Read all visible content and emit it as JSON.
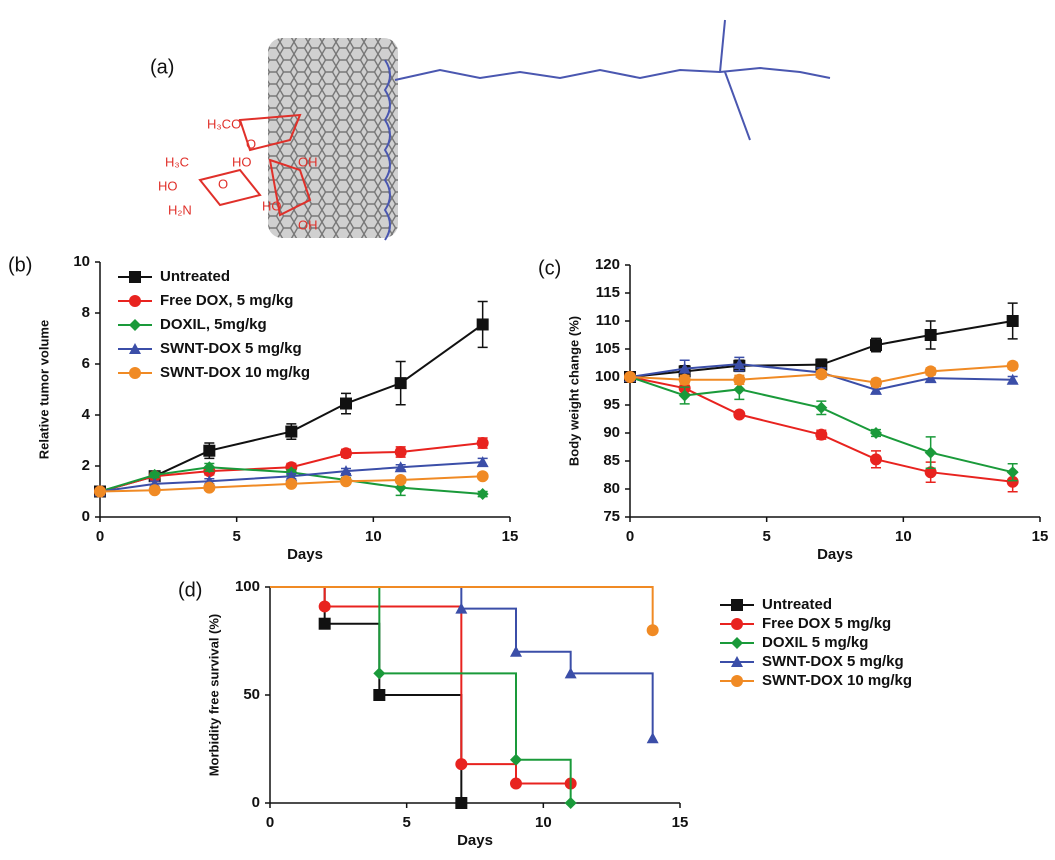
{
  "figure_a": {
    "panel": "(a)",
    "texts": [
      "H₃CO",
      "O",
      "HO",
      "OH",
      "H₃C",
      "HO",
      "O",
      "H₂N",
      "HO",
      "OH"
    ]
  },
  "chart_data": [
    {
      "type": "line",
      "panel": "(b)",
      "xlabel": "Days",
      "ylabel": "Relative tumor volume",
      "xlim": [
        0,
        15
      ],
      "xticks": [
        0,
        5,
        10,
        15
      ],
      "ylim": [
        0,
        10
      ],
      "yticks": [
        0,
        2,
        4,
        6,
        8,
        10
      ],
      "legend": "upper left",
      "x": [
        0,
        2,
        4,
        7,
        9,
        11,
        14
      ],
      "series": [
        {
          "name": "Untreated",
          "color": "#111111",
          "marker": "square",
          "values": [
            1,
            1.6,
            2.6,
            3.35,
            4.45,
            5.25,
            7.55
          ],
          "errors": [
            0,
            0.1,
            0.3,
            0.3,
            0.4,
            0.85,
            0.9
          ]
        },
        {
          "name": "Free DOX, 5 mg/kg",
          "color": "#e8231f",
          "marker": "circle",
          "values": [
            1,
            1.6,
            1.8,
            1.95,
            2.5,
            2.55,
            2.9
          ],
          "errors": [
            0,
            0.1,
            0.15,
            0.15,
            0.15,
            0.2,
            0.2
          ]
        },
        {
          "name": "DOXIL, 5mg/kg",
          "color": "#1a9a3a",
          "marker": "diamond",
          "values": [
            1,
            1.65,
            1.95,
            1.75,
            1.45,
            1.15,
            0.9
          ],
          "errors": [
            0,
            0.1,
            0.15,
            0.1,
            0.1,
            0.3,
            0.1
          ]
        },
        {
          "name": "SWNT-DOX 5 mg/kg",
          "color": "#3b4ea8",
          "marker": "triangle",
          "values": [
            1,
            1.3,
            1.4,
            1.6,
            1.8,
            1.95,
            2.15
          ],
          "errors": [
            0,
            0.1,
            0.1,
            0.1,
            0.1,
            0.1,
            0.15
          ]
        },
        {
          "name": "SWNT-DOX 10 mg/kg",
          "color": "#f08a24",
          "marker": "circle",
          "values": [
            1,
            1.05,
            1.15,
            1.3,
            1.4,
            1.45,
            1.6
          ],
          "errors": [
            0,
            0.1,
            0.1,
            0.1,
            0.1,
            0.1,
            0.1
          ]
        }
      ]
    },
    {
      "type": "line",
      "panel": "(c)",
      "xlabel": "Days",
      "ylabel": "Body weight change (%)",
      "xlim": [
        0,
        15
      ],
      "xticks": [
        0,
        5,
        10,
        15
      ],
      "ylim": [
        75,
        120
      ],
      "yticks": [
        75,
        80,
        85,
        90,
        95,
        100,
        105,
        110,
        115,
        120
      ],
      "x": [
        0,
        2,
        4,
        7,
        9,
        11,
        14
      ],
      "series": [
        {
          "color": "#111111",
          "marker": "square",
          "values": [
            100,
            101,
            102,
            102.2,
            105.7,
            107.5,
            110
          ],
          "errors": [
            0,
            1,
            1,
            1,
            1.2,
            2.5,
            3.2
          ]
        },
        {
          "color": "#e8231f",
          "marker": "circle",
          "values": [
            100,
            98,
            93.3,
            89.7,
            85.3,
            83,
            81.3
          ],
          "errors": [
            0,
            1,
            0.5,
            0.8,
            1.5,
            1.8,
            1.8
          ]
        },
        {
          "color": "#1a9a3a",
          "marker": "diamond",
          "values": [
            100,
            96.7,
            97.8,
            94.5,
            90,
            86.5,
            83
          ],
          "errors": [
            0,
            1.5,
            1.8,
            1.2,
            0.6,
            2.8,
            1.5
          ]
        },
        {
          "color": "#3b4ea8",
          "marker": "triangle",
          "values": [
            100,
            101.5,
            102.3,
            100.8,
            97.7,
            99.8,
            99.5
          ],
          "errors": [
            0,
            1.5,
            1.2,
            0.8,
            0.6,
            0.6,
            0.6
          ]
        },
        {
          "color": "#f08a24",
          "marker": "circle",
          "values": [
            100,
            99.5,
            99.5,
            100.5,
            99,
            101,
            102
          ],
          "errors": [
            0,
            0.8,
            0.8,
            0.6,
            0.6,
            0.6,
            0.6
          ]
        }
      ]
    },
    {
      "type": "step",
      "panel": "(d)",
      "xlabel": "Days",
      "ylabel": "Morbidity free survival (%)",
      "xlim": [
        0,
        15
      ],
      "xticks": [
        0,
        5,
        10,
        15
      ],
      "ylim": [
        0,
        100
      ],
      "yticks": [
        0,
        50,
        100
      ],
      "legend": "right",
      "series": [
        {
          "name": "Untreated",
          "color": "#111111",
          "marker": "square",
          "x": [
            0,
            2,
            4,
            7
          ],
          "values": [
            100,
            83,
            50,
            0
          ]
        },
        {
          "name": "Free DOX 5 mg/kg",
          "color": "#e8231f",
          "marker": "circle",
          "x": [
            0,
            2,
            7,
            9,
            11
          ],
          "values": [
            100,
            91,
            18,
            9,
            9
          ]
        },
        {
          "name": "DOXIL 5 mg/kg",
          "color": "#1a9a3a",
          "marker": "diamond",
          "x": [
            0,
            4,
            9,
            11
          ],
          "values": [
            100,
            60,
            20,
            0
          ]
        },
        {
          "name": "SWNT-DOX 5 mg/kg",
          "color": "#3b4ea8",
          "marker": "triangle",
          "x": [
            0,
            7,
            9,
            11,
            14
          ],
          "values": [
            100,
            90,
            70,
            60,
            30
          ]
        },
        {
          "name": "SWNT-DOX 10 mg/kg",
          "color": "#f08a24",
          "marker": "circle",
          "x": [
            0,
            14
          ],
          "values": [
            100,
            80
          ]
        }
      ]
    }
  ]
}
